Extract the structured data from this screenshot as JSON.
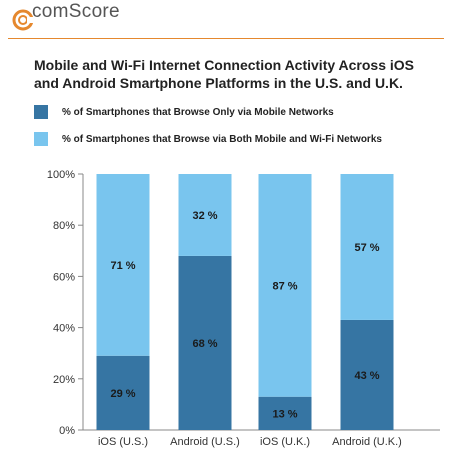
{
  "brand": {
    "name": "comScore"
  },
  "colors": {
    "accent": "#e5882e",
    "mobile_only": "#3675a3",
    "mobile_wifi": "#79c5ee",
    "axis": "#888888"
  },
  "chart_data": {
    "type": "bar",
    "stacked": true,
    "title": "Mobile and Wi-Fi Internet Connection Activity Across iOS and Android Smartphone Platforms in the U.S. and U.K.",
    "categories": [
      "iOS (U.S.)",
      "Android (U.S.)",
      "iOS (U.K.)",
      "Android (U.K.)"
    ],
    "series": [
      {
        "name": "% of Smartphones that Browse Only via Mobile Networks",
        "values": [
          29,
          68,
          13,
          43
        ],
        "labels": [
          "29 %",
          "68 %",
          "13 %",
          "43 %"
        ],
        "color": "#3675a3"
      },
      {
        "name": "% of Smartphones that Browse via Both Mobile and Wi-Fi Networks",
        "values": [
          71,
          32,
          87,
          57
        ],
        "labels": [
          "71 %",
          "32 %",
          "87 %",
          "57 %"
        ],
        "color": "#79c5ee"
      }
    ],
    "ylim": [
      0,
      100
    ],
    "yticks": [
      "0%",
      "20%",
      "40%",
      "60%",
      "80%",
      "100%"
    ],
    "legend": "top",
    "grid": false
  }
}
